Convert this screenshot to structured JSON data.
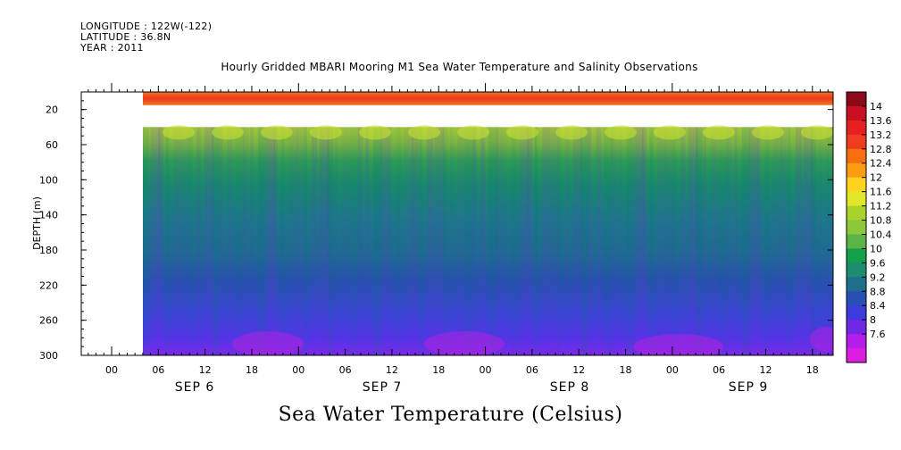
{
  "header": {
    "longitude": "LONGITUDE : 122W(-122)",
    "latitude": "LATITUDE : 36.8N",
    "year": "YEAR : 2011"
  },
  "chart_data": {
    "type": "heatmap",
    "title": "Hourly Gridded MBARI Mooring M1 Sea Water Temperature and Salinity Observations",
    "bottom_title": "Sea Water Temperature (Celsius)",
    "ylabel": "DEPTH (m)",
    "y_axis": {
      "ylim": [
        0,
        300
      ],
      "inverted": true,
      "ticks": [
        20,
        60,
        100,
        140,
        180,
        220,
        260,
        300
      ]
    },
    "x_axis": {
      "hour_ticks": [
        "00",
        "06",
        "12",
        "18",
        "00",
        "06",
        "12",
        "18",
        "00",
        "06",
        "12",
        "18",
        "00",
        "06",
        "12",
        "18"
      ],
      "day_labels": [
        "SEP  6",
        "SEP  7",
        "SEP  8",
        "SEP  9"
      ]
    },
    "colorbar": {
      "min": 7.6,
      "max": 14.2,
      "labels": [
        "14",
        "13.6",
        "13.2",
        "12.8",
        "12.4",
        "12",
        "11.6",
        "11.2",
        "10.8",
        "10.4",
        "10",
        "9.6",
        "9.2",
        "8.8",
        "8.4",
        "8",
        "7.6"
      ],
      "colors": [
        "#8b0a1a",
        "#c80f23",
        "#e62020",
        "#f03c1e",
        "#f56e0f",
        "#fa9b14",
        "#ffd21e",
        "#e1e628",
        "#aad22d",
        "#8cc83c",
        "#5ab446",
        "#14a04b",
        "#1e8c6e",
        "#1e6e8c",
        "#2850b4",
        "#3c3cdc",
        "#6e28e6",
        "#b41ee6",
        "#dc1ee1"
      ]
    },
    "depth_profile": [
      {
        "depth": 10,
        "value": 13.0
      },
      {
        "depth": 40,
        "value": 11.2
      },
      {
        "depth": 60,
        "value": 10.4
      },
      {
        "depth": 80,
        "value": 9.8
      },
      {
        "depth": 100,
        "value": 9.4
      },
      {
        "depth": 140,
        "value": 9.2
      },
      {
        "depth": 180,
        "value": 9.0
      },
      {
        "depth": 220,
        "value": 8.8
      },
      {
        "depth": 260,
        "value": 8.4
      },
      {
        "depth": 300,
        "value": 8.0
      }
    ],
    "data_gap_depth_range": [
      14,
      40
    ]
  }
}
